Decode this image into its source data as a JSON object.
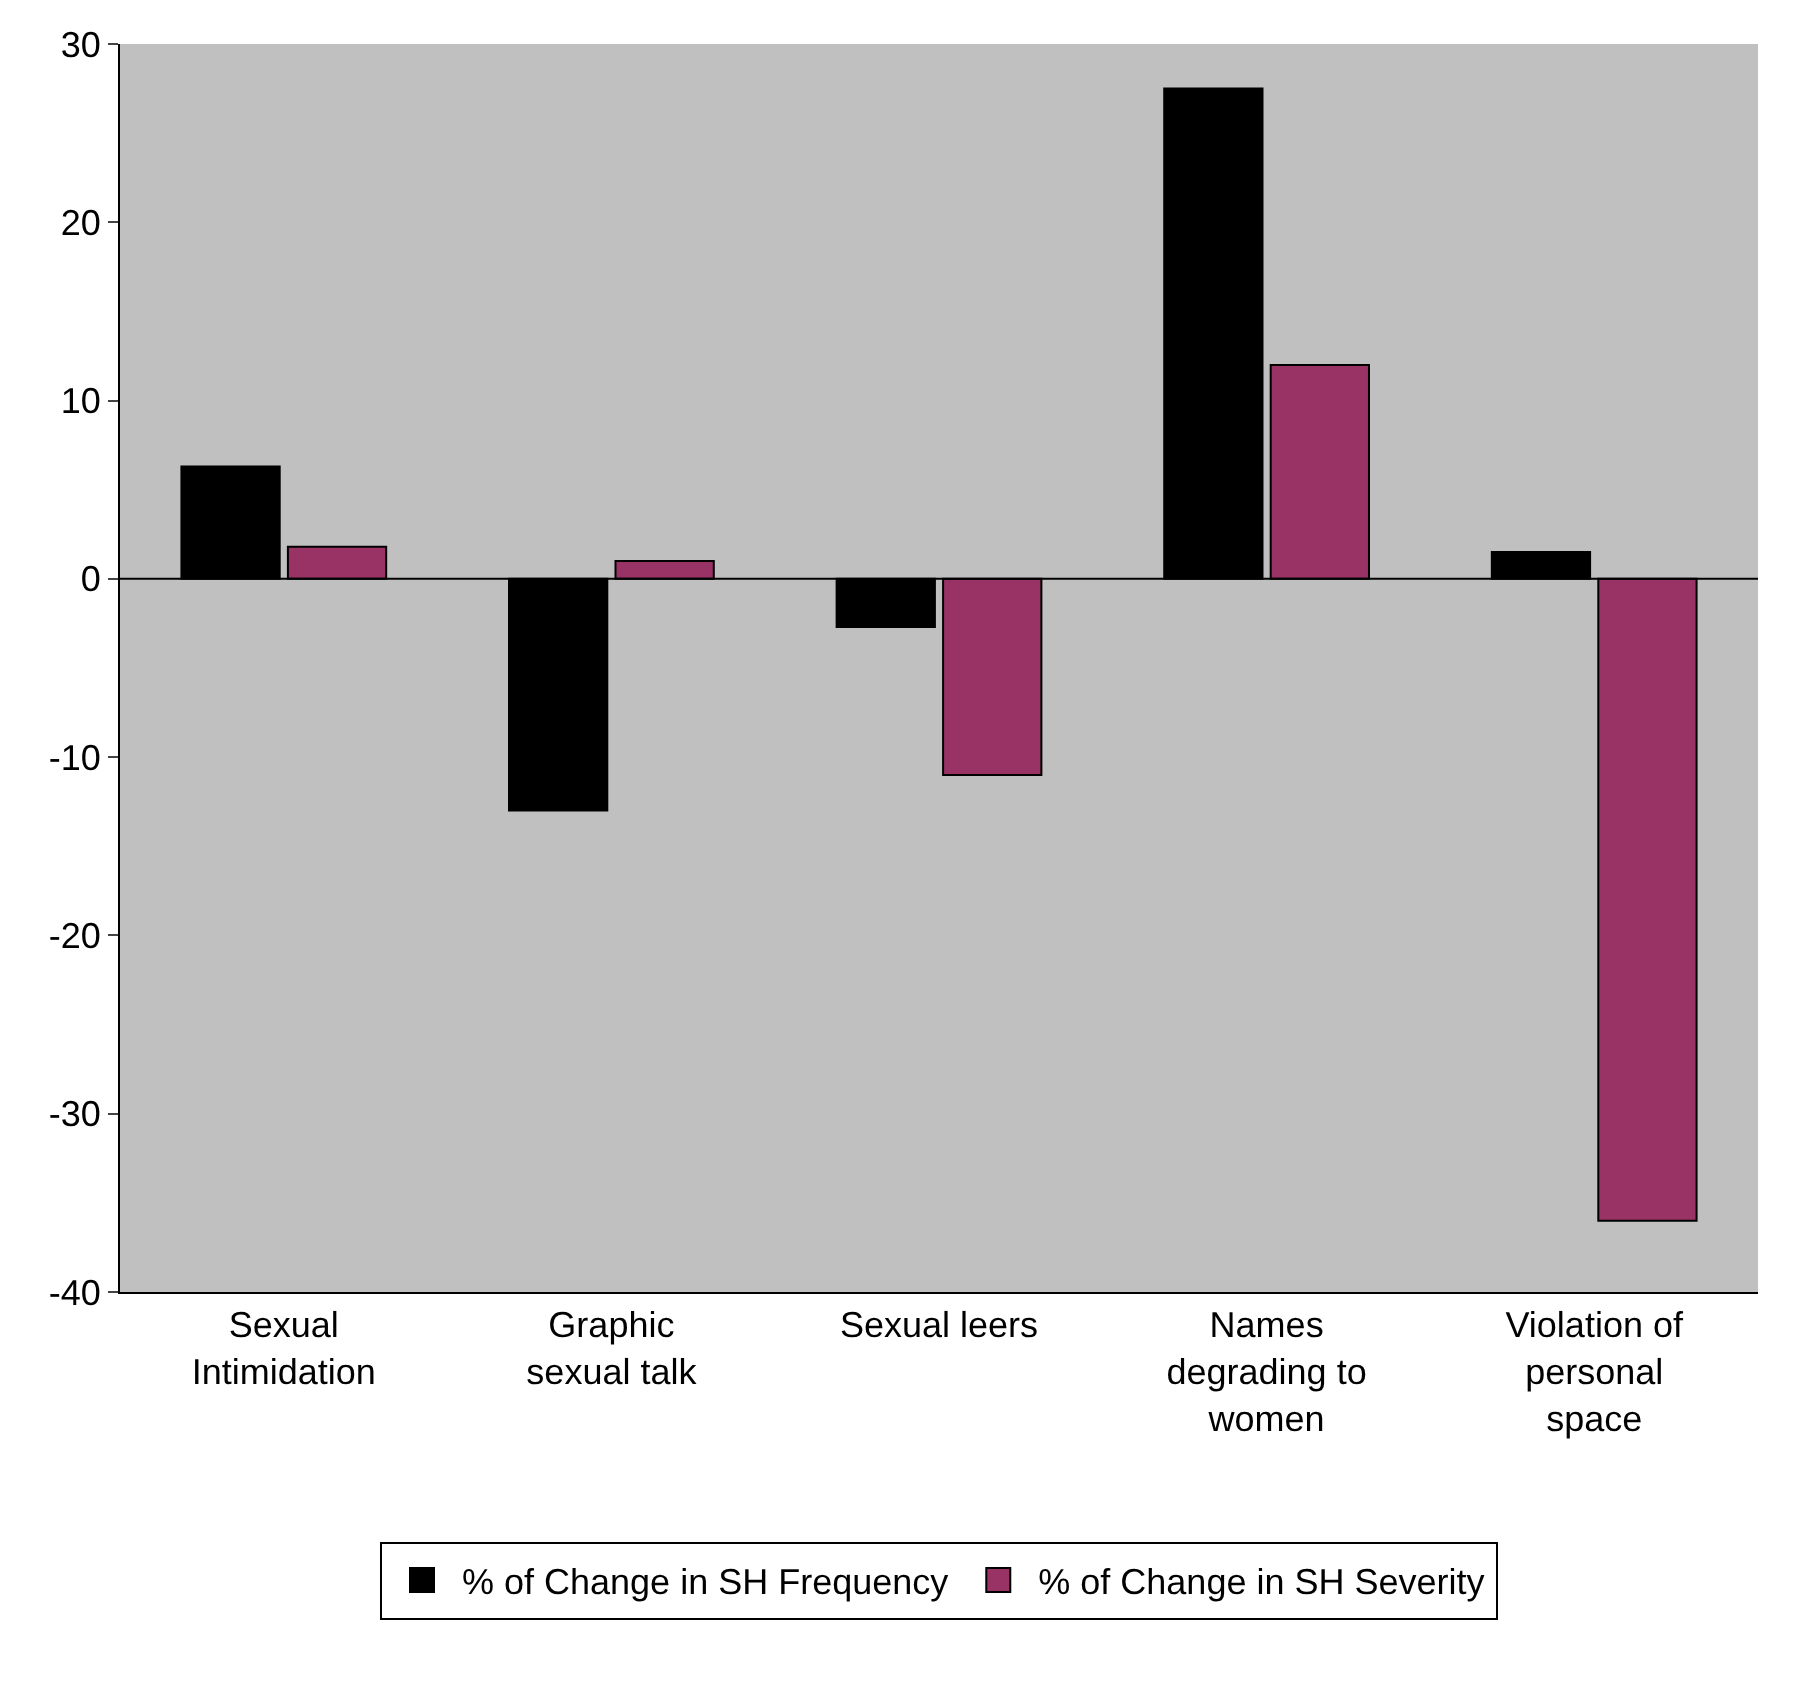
{
  "chart_data": {
    "type": "bar",
    "categories": [
      "Sexual Intimidation",
      "Graphic sexual talk",
      "Sexual leers",
      "Names degrading to women",
      "Violation of personal space"
    ],
    "series": [
      {
        "name": "% of Change in SH Frequency",
        "color": "#000000",
        "values": [
          6.3,
          -13,
          -2.7,
          27.5,
          1.5
        ]
      },
      {
        "name": "% of Change in SH Severity",
        "color": "#993366",
        "values": [
          1.8,
          1,
          -11,
          12,
          -36
        ]
      }
    ],
    "ylim": [
      -40,
      30
    ],
    "yticks": [
      -40,
      -30,
      -20,
      -10,
      0,
      10,
      20,
      30
    ],
    "grid": false,
    "legend": "bottom",
    "ref_lines": [
      {
        "axis": "y",
        "value": 0,
        "color": "#000000"
      }
    ]
  }
}
